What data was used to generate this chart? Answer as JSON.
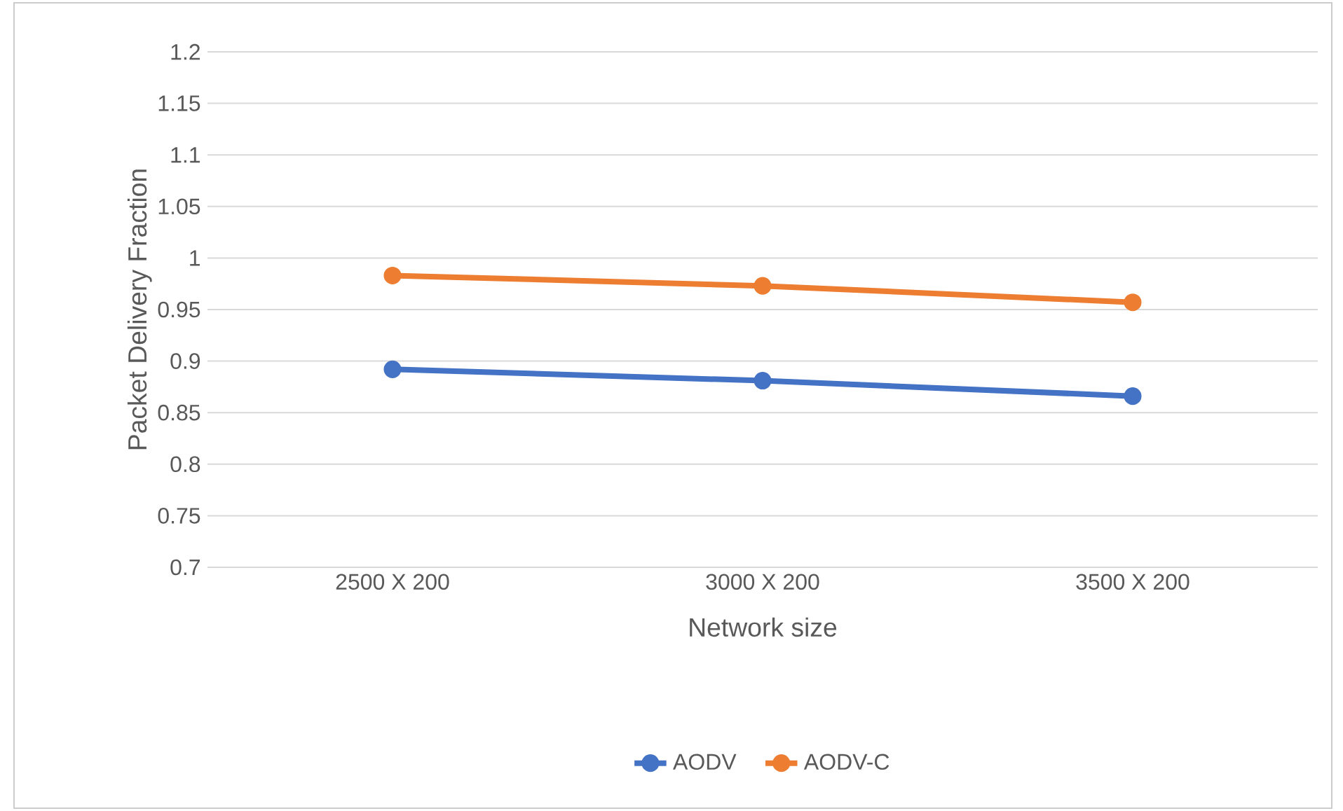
{
  "chart_data": {
    "type": "line",
    "xlabel": "Network size",
    "ylabel": "Packet Delivery Fraction",
    "categories": [
      "2500 X 200",
      "3000 X 200",
      "3500 X 200"
    ],
    "series": [
      {
        "name": "AODV",
        "color": "#4472c4",
        "values": [
          0.892,
          0.881,
          0.866
        ]
      },
      {
        "name": "AODV-C",
        "color": "#ed7d31",
        "values": [
          0.983,
          0.973,
          0.957
        ]
      }
    ],
    "ylim": [
      0.7,
      1.2
    ],
    "yticks": [
      0.7,
      0.75,
      0.8,
      0.85,
      0.9,
      0.95,
      1,
      1.05,
      1.1,
      1.15,
      1.2
    ],
    "grid": "y",
    "legend": "bottom",
    "marker": "circle",
    "line_style": "solid"
  }
}
